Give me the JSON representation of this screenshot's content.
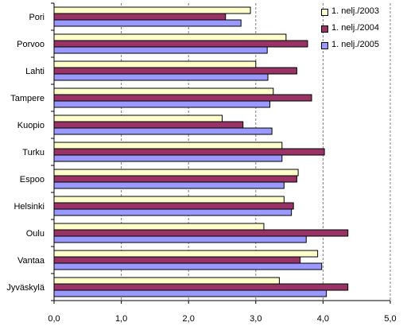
{
  "chart_data": {
    "type": "bar",
    "orientation": "horizontal",
    "categories": [
      "Pori",
      "Porvoo",
      "Lahti",
      "Tampere",
      "Kuopio",
      "Turku",
      "Espoo",
      "Helsinki",
      "Oulu",
      "Vantaa",
      "Jyväskylä"
    ],
    "series": [
      {
        "name": "1. nelj./2003",
        "color": "#ffffcc",
        "values": [
          2.92,
          3.45,
          3.0,
          3.26,
          2.5,
          3.39,
          3.63,
          3.42,
          3.12,
          3.92,
          3.35
        ]
      },
      {
        "name": "1. nelj./2004",
        "color": "#993366",
        "values": [
          2.55,
          3.77,
          3.61,
          3.83,
          2.81,
          4.02,
          3.61,
          3.56,
          4.37,
          3.66,
          4.37
        ]
      },
      {
        "name": "1. nelj./2005",
        "color": "#9999ff",
        "values": [
          2.78,
          3.17,
          3.18,
          3.21,
          3.24,
          3.39,
          3.42,
          3.53,
          3.75,
          3.98,
          4.05
        ]
      }
    ],
    "xlim": [
      0,
      5
    ],
    "xticks": [
      "0,0",
      "1,0",
      "2,0",
      "3,0",
      "4,0",
      "5,0"
    ],
    "grid": "vertical dashed",
    "legend_position": "top-right",
    "title": "",
    "xlabel": "",
    "ylabel": ""
  }
}
